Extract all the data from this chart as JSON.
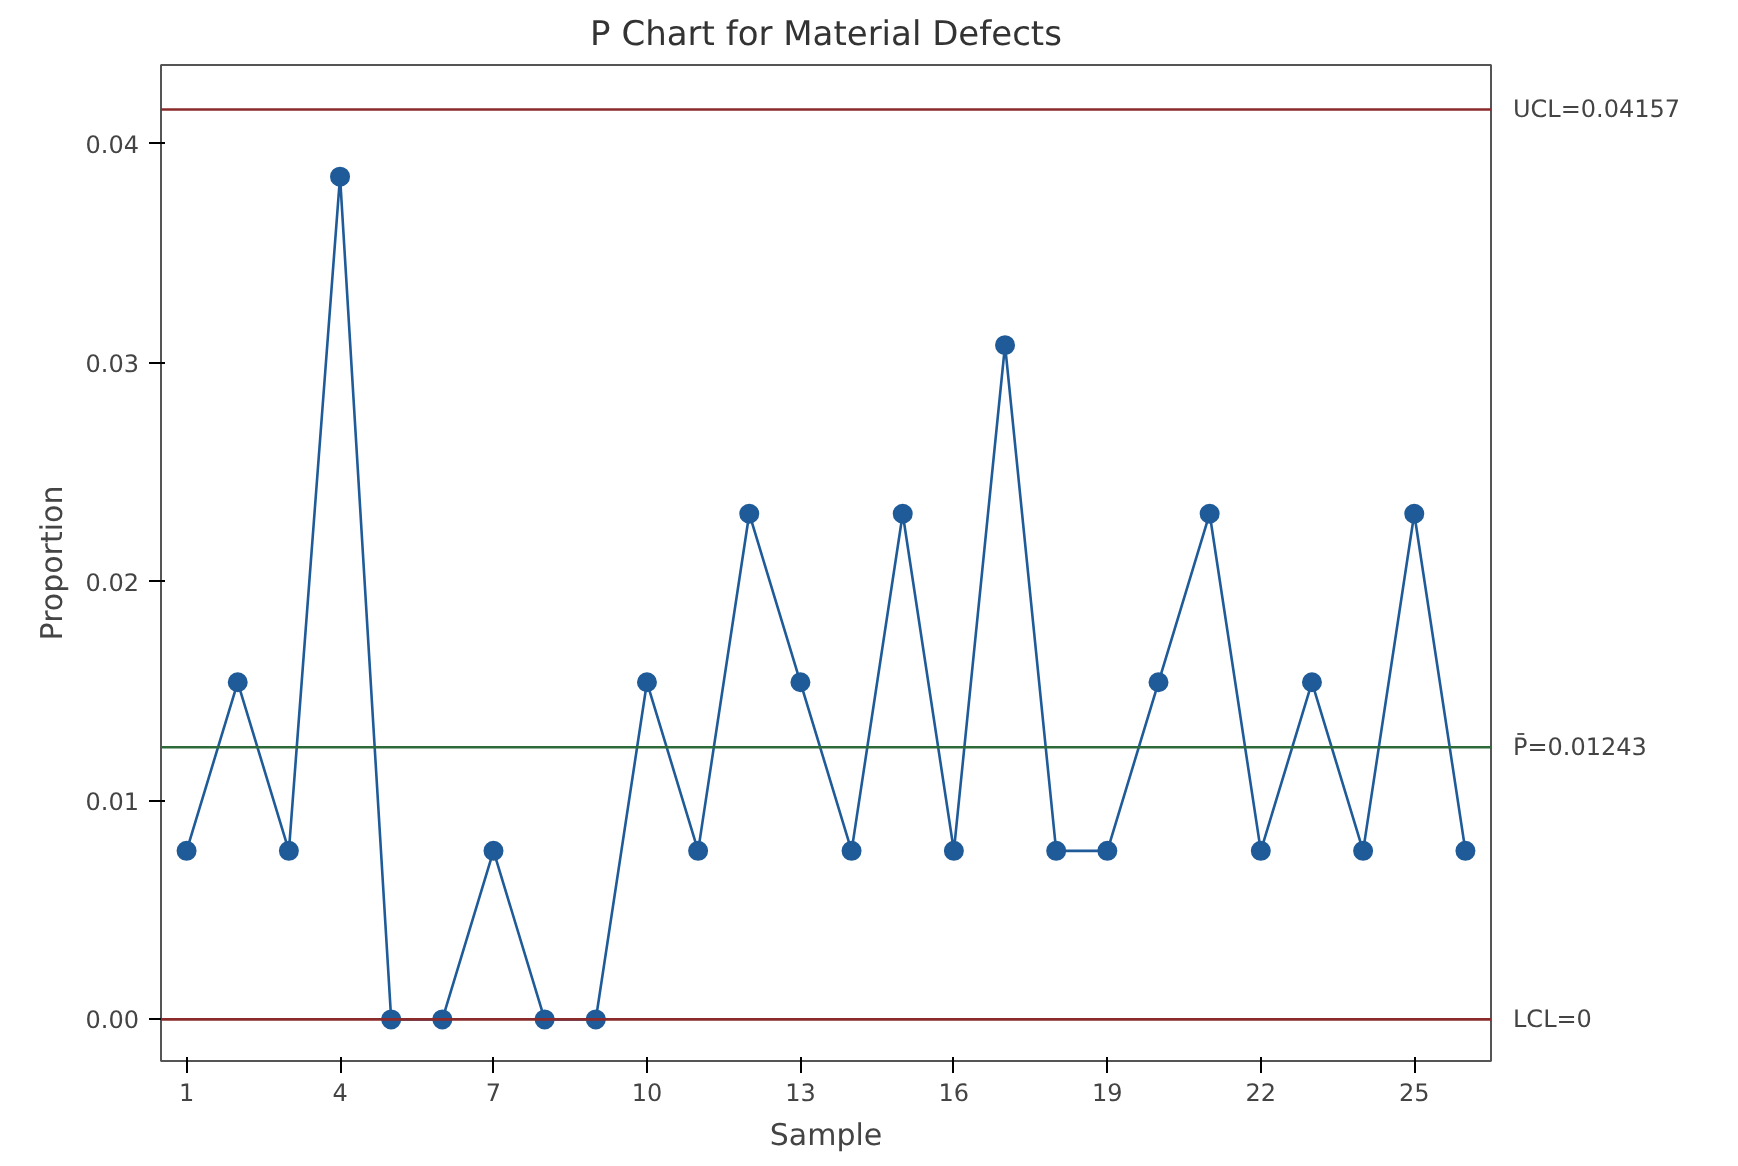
{
  "chart_data": {
    "type": "line",
    "title": "P Chart for Material Defects",
    "xlabel": "Sample",
    "ylabel": "Proportion",
    "x": [
      1,
      2,
      3,
      4,
      5,
      6,
      7,
      8,
      9,
      10,
      11,
      12,
      13,
      14,
      15,
      16,
      17,
      18,
      19,
      20,
      21,
      22,
      23,
      24,
      25,
      26
    ],
    "series": [
      {
        "color": "#1f5b98",
        "values": [
          0.0077,
          0.0154,
          0.0077,
          0.0385,
          0,
          0,
          0.0077,
          0,
          0,
          0.0154,
          0.0077,
          0.0231,
          0.0154,
          0.0077,
          0.0231,
          0.0077,
          0.0308,
          0.0077,
          0.0077,
          0.0154,
          0.0231,
          0.0077,
          0.0154,
          0.0077,
          0.0231,
          0.0077
        ]
      }
    ],
    "xlim": [
      0.5,
      26.5
    ],
    "xticks": [
      1,
      4,
      7,
      10,
      13,
      16,
      19,
      22,
      25
    ],
    "ylim": [
      -0.0019,
      0.0436
    ],
    "yticks": [
      {
        "value": 0,
        "label": "0.00"
      },
      {
        "value": 0.01,
        "label": "0.01"
      },
      {
        "value": 0.02,
        "label": "0.02"
      },
      {
        "value": 0.03,
        "label": "0.03"
      },
      {
        "value": 0.04,
        "label": "0.04"
      }
    ],
    "ref_lines": [
      {
        "axis": "y",
        "value": 0.04157,
        "label": "UCL=0.04157",
        "color": "#8b2a2a"
      },
      {
        "axis": "y",
        "value": 0.01243,
        "label": "P̄=0.01243",
        "color": "#2e6b3a"
      },
      {
        "axis": "y",
        "value": 0,
        "label": "LCL=0",
        "color": "#8b2a2a"
      }
    ],
    "grid": false,
    "marker": "circle",
    "line_style": "solid"
  }
}
